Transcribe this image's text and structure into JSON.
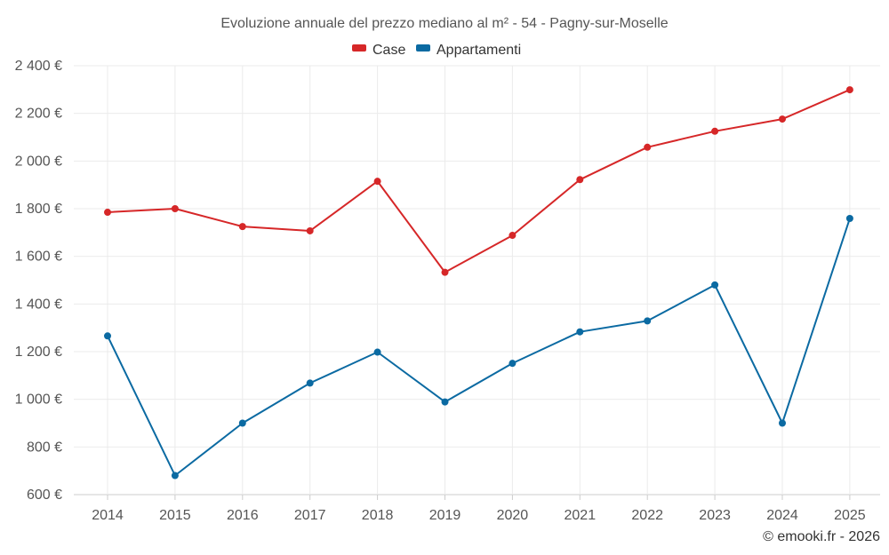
{
  "chart_data": {
    "type": "line",
    "title": "Evoluzione annuale del prezzo mediano al m² - 54 - Pagny-sur-Moselle",
    "categories": [
      "2014",
      "2015",
      "2016",
      "2017",
      "2018",
      "2019",
      "2020",
      "2021",
      "2022",
      "2023",
      "2024",
      "2025"
    ],
    "series": [
      {
        "name": "Case",
        "color": "#d62728",
        "values": [
          1785,
          1800,
          1725,
          1707,
          1915,
          1533,
          1688,
          1922,
          2058,
          2125,
          2176,
          2299
        ]
      },
      {
        "name": "Appartamenti",
        "color": "#0b6aa2",
        "values": [
          1266,
          680,
          900,
          1068,
          1198,
          989,
          1151,
          1283,
          1329,
          1480,
          900,
          1759
        ]
      }
    ],
    "y_ticks": [
      "600 €",
      "800 €",
      "1 000 €",
      "1 200 €",
      "1 400 €",
      "1 600 €",
      "1 800 €",
      "2 000 €",
      "2 200 €",
      "2 400 €"
    ],
    "y_tick_values": [
      600,
      800,
      1000,
      1200,
      1400,
      1600,
      1800,
      2000,
      2200,
      2400
    ],
    "ylim": [
      600,
      2400
    ],
    "xlabel": "",
    "ylabel": "",
    "legend_position": "top-center",
    "grid": true
  },
  "credit": "© emooki.fr - 2026"
}
